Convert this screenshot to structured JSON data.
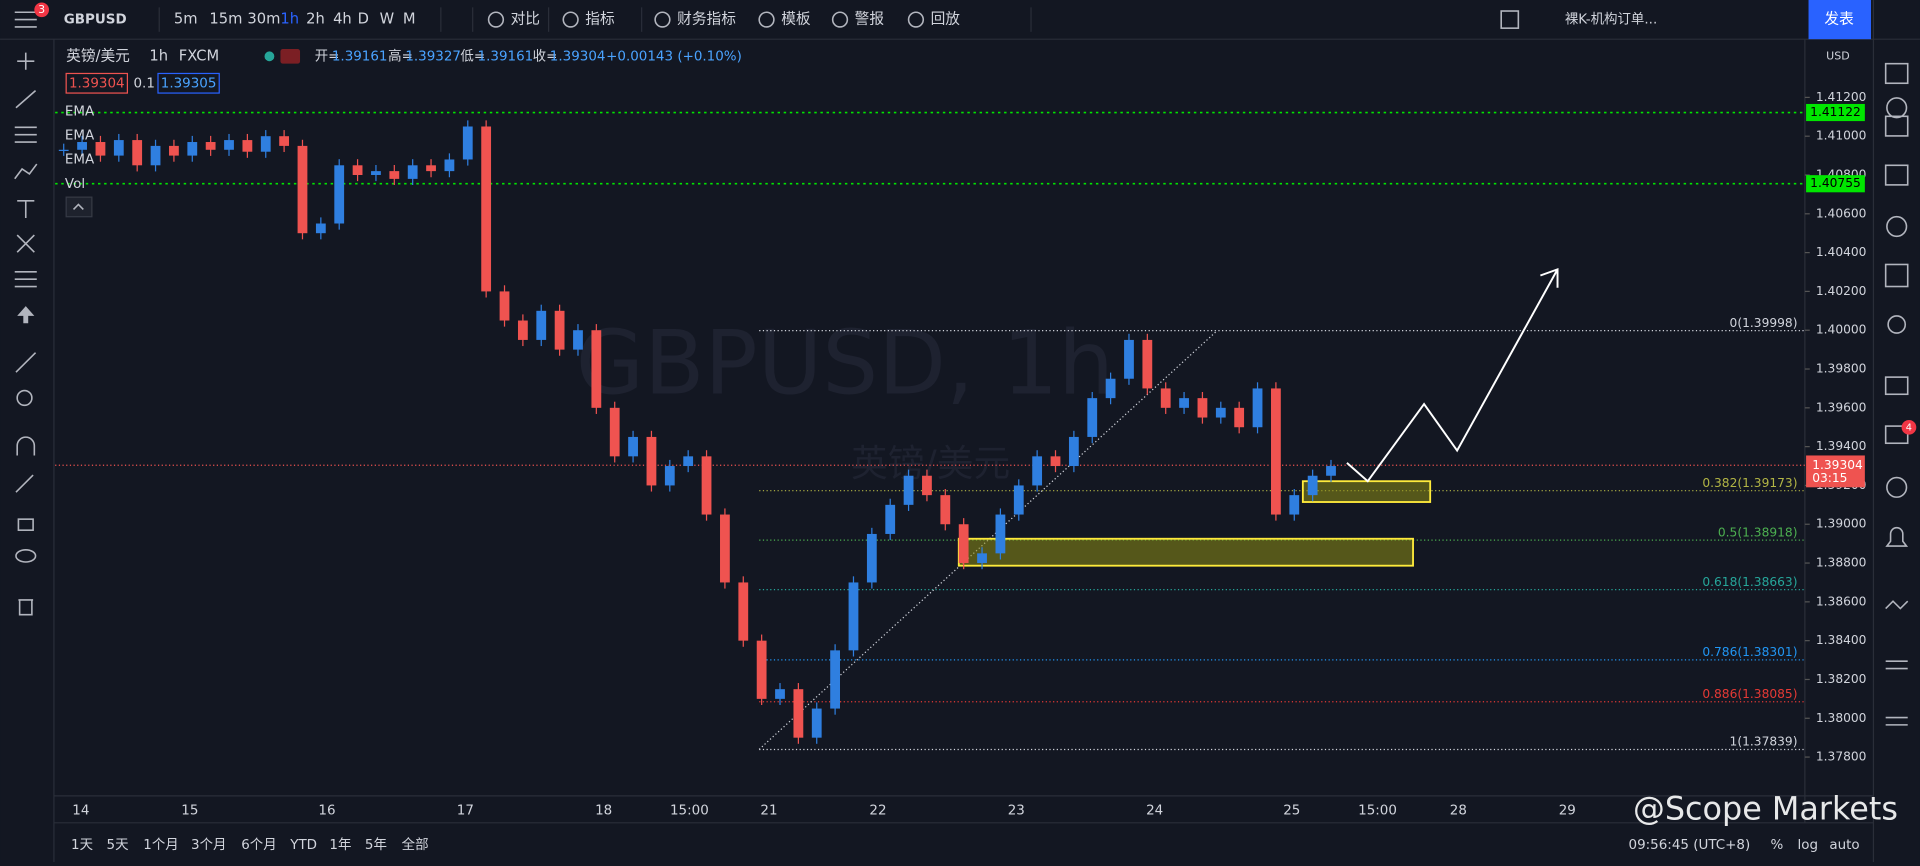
{
  "toolbar": {
    "menu_badge": "3",
    "symbol": "GBPUSD",
    "intervals": [
      "5m",
      "15m",
      "30m",
      "1h",
      "2h",
      "4h",
      "D",
      "W",
      "M"
    ],
    "buttons": [
      "对比",
      "指标",
      "财务指标",
      "模板",
      "警报",
      "回放"
    ],
    "layout_name": "裸K-机构订单...",
    "publish": "发表"
  },
  "legend": {
    "pair": "英镑/美元",
    "interval": "1h",
    "source": "FXCM",
    "open_label": "开=",
    "open": "1.39161",
    "high_label": "高=",
    "high": "1.39327",
    "low_label": "低=",
    "low": "1.39161",
    "close_label": "收=",
    "close": "1.39304",
    "change": "+0.00143 (+0.10%)",
    "bid": "1.39304",
    "spread": "0.1",
    "ask": "1.39305",
    "studies": [
      "EMA",
      "EMA",
      "EMA",
      "Vol"
    ]
  },
  "chart_data": {
    "type": "candlestick",
    "watermark": "GBPUSD, 1h",
    "watermark_sub": "英镑/美元",
    "currency": "USD",
    "up_color": "#2f7fe0",
    "down_color": "#ef5350",
    "closes": [
      1.4093,
      1.4097,
      1.409,
      1.4098,
      1.4085,
      1.4095,
      1.409,
      1.4097,
      1.4093,
      1.4098,
      1.4092,
      1.41,
      1.4095,
      1.405,
      1.4055,
      1.4085,
      1.408,
      1.4082,
      1.4078,
      1.4085,
      1.4082,
      1.4088,
      1.4105,
      1.402,
      1.4005,
      1.3995,
      1.401,
      1.399,
      1.4,
      1.396,
      1.3935,
      1.3945,
      1.392,
      1.393,
      1.3935,
      1.3905,
      1.387,
      1.384,
      1.381,
      1.3815,
      1.379,
      1.3805,
      1.3835,
      1.387,
      1.3895,
      1.391,
      1.3925,
      1.3915,
      1.39,
      1.388,
      1.3885,
      1.3905,
      1.392,
      1.3935,
      1.393,
      1.3945,
      1.3965,
      1.3975,
      1.3995,
      1.397,
      1.396,
      1.3965,
      1.3955,
      1.396,
      1.395,
      1.397,
      1.3905,
      1.3915,
      1.3925,
      1.393
    ],
    "x_labels": [
      "14",
      "15",
      "16",
      "17",
      "18",
      "15:00",
      "21",
      "22",
      "23",
      "24",
      "25",
      "15:00",
      "28",
      "29"
    ],
    "ylim": [
      1.376,
      1.415
    ],
    "yticks": [
      {
        "value": 1.412,
        "label": "1.41200"
      },
      {
        "value": 1.41,
        "label": "1.41000"
      },
      {
        "value": 1.408,
        "label": "1.40800"
      },
      {
        "value": 1.406,
        "label": "1.40600"
      },
      {
        "value": 1.404,
        "label": "1.40400"
      },
      {
        "value": 1.402,
        "label": "1.40200"
      },
      {
        "value": 1.4,
        "label": "1.40000"
      },
      {
        "value": 1.398,
        "label": "1.39800"
      },
      {
        "value": 1.396,
        "label": "1.39600"
      },
      {
        "value": 1.394,
        "label": "1.39400"
      },
      {
        "value": 1.392,
        "label": "1.39200"
      },
      {
        "value": 1.39,
        "label": "1.39000"
      },
      {
        "value": 1.388,
        "label": "1.38800"
      },
      {
        "value": 1.386,
        "label": "1.38600"
      },
      {
        "value": 1.384,
        "label": "1.38400"
      },
      {
        "value": 1.382,
        "label": "1.38200"
      },
      {
        "value": 1.38,
        "label": "1.38000"
      },
      {
        "value": 1.378,
        "label": "1.37800"
      }
    ],
    "hlines": [
      1.41122,
      1.40755
    ],
    "hline_color": "#00e600",
    "last_price": 1.39304,
    "countdown": "03:15",
    "fib_levels": [
      {
        "value": 1.39998,
        "label": "0(1.39998)",
        "color": "#d1d4dc"
      },
      {
        "value": 1.39173,
        "label": "0.382(1.39173)",
        "color": "#b2b545"
      },
      {
        "value": 1.38918,
        "label": "0.5(1.38918)",
        "color": "#4caf50"
      },
      {
        "value": 1.38663,
        "label": "0.618(1.38663)",
        "color": "#26a69a"
      },
      {
        "value": 1.38301,
        "label": "0.786(1.38301)",
        "color": "#2196f3"
      },
      {
        "value": 1.38085,
        "label": "0.886(1.38085)",
        "color": "#e53935"
      },
      {
        "value": 1.37839,
        "label": "1(1.37839)",
        "color": "#d1d4dc"
      }
    ]
  },
  "right_sidebar": {
    "badge": "4"
  },
  "bottom_bar": {
    "ranges": [
      "1天",
      "5天",
      "1个月",
      "3个月",
      "6个月",
      "YTD",
      "1年",
      "5年",
      "全部"
    ],
    "clock": "09:56:45 (UTC+8)",
    "options": [
      "%",
      "log",
      "auto"
    ]
  },
  "brand": "@Scope Markets"
}
